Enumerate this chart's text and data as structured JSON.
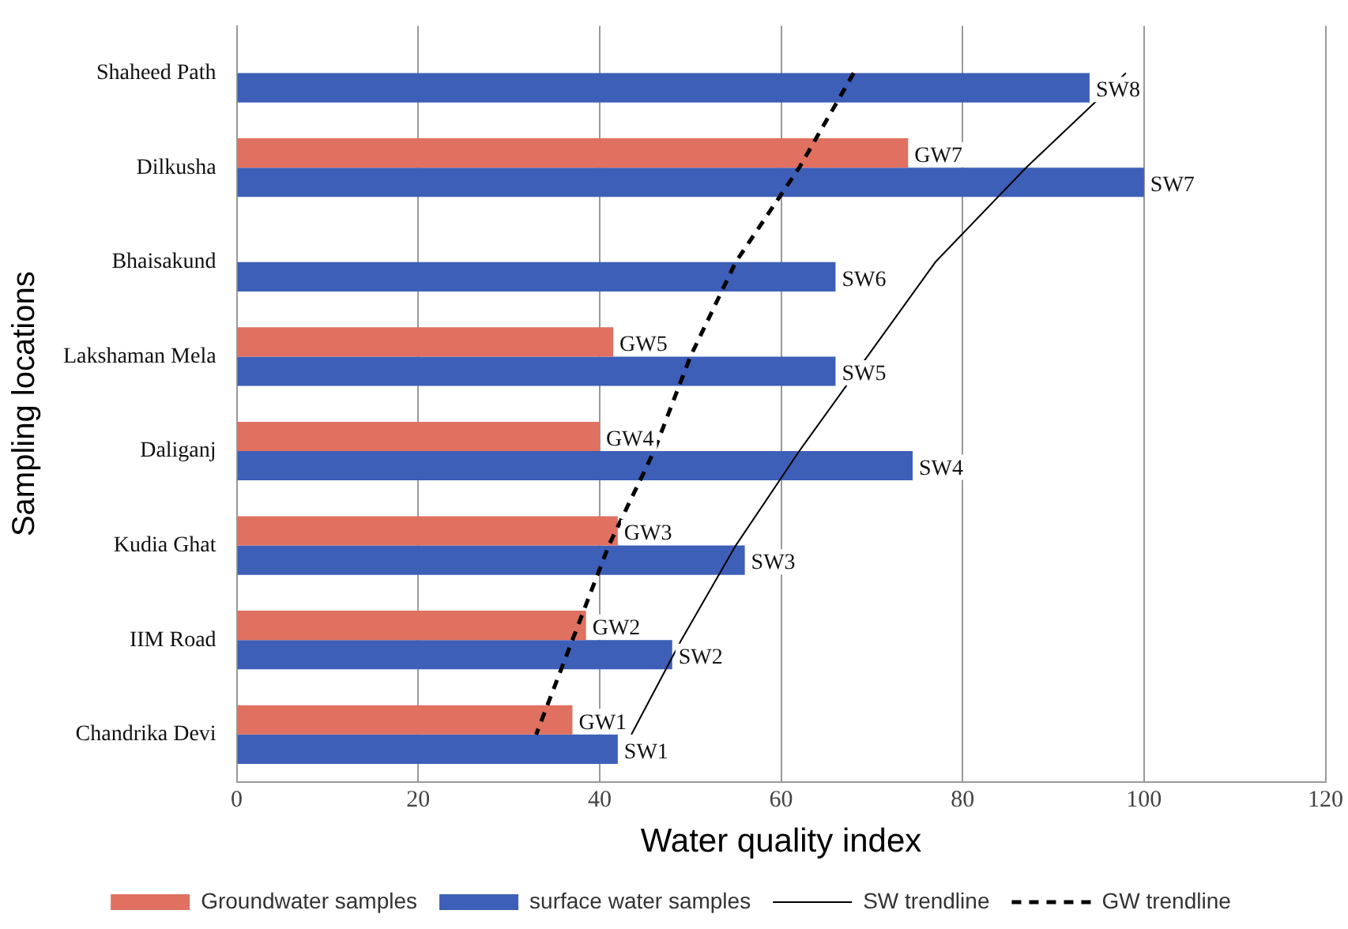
{
  "chart_data": {
    "type": "bar",
    "orientation": "horizontal",
    "xlabel": "Water quality index",
    "ylabel": "Sampling locations",
    "categories": [
      "Shaheed Path",
      "Dilkusha",
      "Bhaisakund",
      "Lakshaman Mela",
      "Daliganj",
      "Kudia Ghat",
      "IIM Road",
      "Chandrika Devi"
    ],
    "series": [
      {
        "name": "Groundwater samples",
        "color": "#e07060",
        "values": [
          null,
          74,
          null,
          41.5,
          40,
          42,
          38.5,
          37
        ],
        "value_labels": [
          null,
          "GW7",
          null,
          "GW5",
          "GW4",
          "GW3",
          "GW2",
          "GW1"
        ]
      },
      {
        "name": "surface water samples",
        "color": "#3d5fb8",
        "values": [
          94,
          100,
          66,
          66,
          74.5,
          56,
          48,
          42
        ],
        "value_labels": [
          "SW8",
          "SW7",
          "SW6",
          "SW5",
          "SW4",
          "SW3",
          "SW2",
          "SW1"
        ]
      },
      {
        "name": "SW trendline",
        "type": "line",
        "color": "#000000",
        "line_style": "solid",
        "values": [
          98,
          87,
          77,
          69.5,
          62,
          55,
          49,
          43.5
        ]
      },
      {
        "name": "GW trendline",
        "type": "line",
        "color": "#000000",
        "line_style": "dashed",
        "values": [
          68,
          62,
          55,
          50,
          46,
          41,
          37,
          33
        ]
      }
    ],
    "xlim": [
      0,
      120
    ],
    "xticks": [
      0,
      20,
      40,
      60,
      80,
      100,
      120
    ],
    "grid": "x",
    "legend": "bottom",
    "marker": "none"
  }
}
